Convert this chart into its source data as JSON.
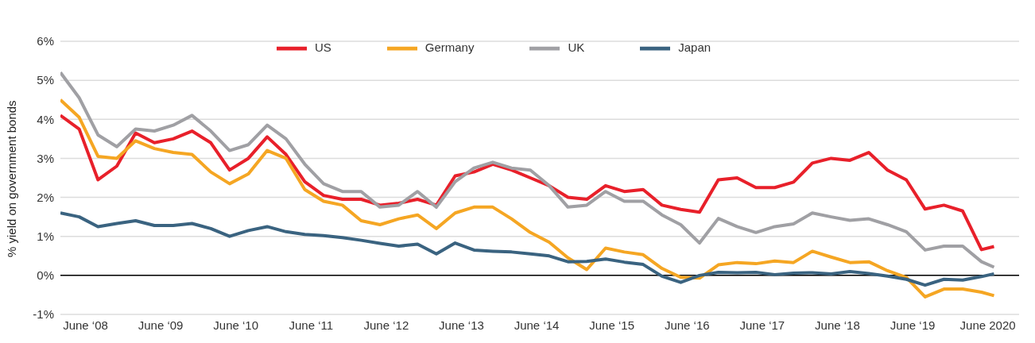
{
  "chart_data": {
    "type": "line",
    "ylabel": "% yield on government bonds",
    "x": [
      "2008-02",
      "2008-05",
      "2008-08",
      "2008-11",
      "2009-02",
      "2009-05",
      "2009-08",
      "2009-11",
      "2010-02",
      "2010-05",
      "2010-08",
      "2010-11",
      "2011-02",
      "2011-05",
      "2011-08",
      "2011-11",
      "2012-02",
      "2012-05",
      "2012-08",
      "2012-11",
      "2013-02",
      "2013-05",
      "2013-08",
      "2013-11",
      "2014-02",
      "2014-05",
      "2014-08",
      "2014-11",
      "2015-02",
      "2015-05",
      "2015-08",
      "2015-11",
      "2016-02",
      "2016-05",
      "2016-08",
      "2016-11",
      "2017-02",
      "2017-05",
      "2017-08",
      "2017-11",
      "2018-02",
      "2018-05",
      "2018-08",
      "2018-11",
      "2019-02",
      "2019-05",
      "2019-08",
      "2019-11",
      "2020-02",
      "2020-05",
      "2020-07"
    ],
    "series": [
      {
        "name": "US",
        "color": "#e8202a",
        "values": [
          4.1,
          3.75,
          2.45,
          2.8,
          3.65,
          3.4,
          3.5,
          3.7,
          3.4,
          2.7,
          3.0,
          3.55,
          3.1,
          2.4,
          2.05,
          1.95,
          1.95,
          1.8,
          1.85,
          1.95,
          1.8,
          2.55,
          2.65,
          2.85,
          2.7,
          2.5,
          2.3,
          2.0,
          1.95,
          2.3,
          2.15,
          2.2,
          1.8,
          1.69,
          1.62,
          2.45,
          2.5,
          2.25,
          2.25,
          2.39,
          2.88,
          3.0,
          2.95,
          3.15,
          2.7,
          2.45,
          1.7,
          1.8,
          1.65,
          0.66,
          0.74
        ]
      },
      {
        "name": "Germany",
        "color": "#f5a623",
        "values": [
          4.5,
          4.05,
          3.05,
          3.0,
          3.45,
          3.25,
          3.15,
          3.1,
          2.65,
          2.35,
          2.6,
          3.2,
          3.0,
          2.2,
          1.9,
          1.8,
          1.4,
          1.3,
          1.45,
          1.55,
          1.2,
          1.6,
          1.75,
          1.75,
          1.45,
          1.1,
          0.85,
          0.45,
          0.15,
          0.7,
          0.6,
          0.53,
          0.18,
          -0.05,
          -0.07,
          0.27,
          0.33,
          0.3,
          0.37,
          0.33,
          0.62,
          0.47,
          0.33,
          0.35,
          0.12,
          -0.05,
          -0.55,
          -0.35,
          -0.35,
          -0.43,
          -0.52
        ]
      },
      {
        "name": "UK",
        "color": "#a0a0a4",
        "values": [
          5.2,
          4.55,
          3.6,
          3.3,
          3.75,
          3.7,
          3.85,
          4.1,
          3.7,
          3.2,
          3.35,
          3.85,
          3.5,
          2.85,
          2.35,
          2.15,
          2.15,
          1.75,
          1.8,
          2.15,
          1.75,
          2.4,
          2.75,
          2.9,
          2.75,
          2.7,
          2.3,
          1.75,
          1.8,
          2.15,
          1.9,
          1.9,
          1.55,
          1.3,
          0.83,
          1.46,
          1.25,
          1.1,
          1.25,
          1.32,
          1.6,
          1.5,
          1.41,
          1.45,
          1.3,
          1.12,
          0.65,
          0.75,
          0.75,
          0.35,
          0.21
        ]
      },
      {
        "name": "Japan",
        "color": "#3a6380",
        "values": [
          1.6,
          1.5,
          1.25,
          1.33,
          1.4,
          1.28,
          1.28,
          1.33,
          1.2,
          1.0,
          1.15,
          1.25,
          1.12,
          1.05,
          1.02,
          0.97,
          0.9,
          0.82,
          0.75,
          0.8,
          0.55,
          0.83,
          0.65,
          0.62,
          0.6,
          0.55,
          0.5,
          0.35,
          0.36,
          0.42,
          0.34,
          0.28,
          -0.02,
          -0.18,
          0.0,
          0.08,
          0.07,
          0.08,
          0.02,
          0.06,
          0.07,
          0.04,
          0.1,
          0.05,
          -0.02,
          -0.1,
          -0.25,
          -0.1,
          -0.12,
          -0.03,
          0.04
        ]
      }
    ],
    "xlim": [
      "2008-02",
      "2020-11"
    ],
    "xticks": [
      {
        "value": "2008-06",
        "label": "June ‘08"
      },
      {
        "value": "2009-06",
        "label": "June ‘09"
      },
      {
        "value": "2010-06",
        "label": "June ‘10"
      },
      {
        "value": "2011-06",
        "label": "June ‘11"
      },
      {
        "value": "2012-06",
        "label": "June ‘12"
      },
      {
        "value": "2013-06",
        "label": "June ‘13"
      },
      {
        "value": "2014-06",
        "label": "June ‘14"
      },
      {
        "value": "2015-06",
        "label": "June ‘15"
      },
      {
        "value": "2016-06",
        "label": "June ‘16"
      },
      {
        "value": "2017-06",
        "label": "June ‘17"
      },
      {
        "value": "2018-06",
        "label": "June ‘18"
      },
      {
        "value": "2019-06",
        "label": "June ‘19"
      },
      {
        "value": "2020-06",
        "label": "June 2020"
      }
    ],
    "ylim": [
      -1,
      6
    ],
    "yticks": [
      {
        "value": -1,
        "label": "-1%"
      },
      {
        "value": 0,
        "label": "0%"
      },
      {
        "value": 1,
        "label": "1%"
      },
      {
        "value": 2,
        "label": "2%"
      },
      {
        "value": 3,
        "label": "3%"
      },
      {
        "value": 4,
        "label": "4%"
      },
      {
        "value": 5,
        "label": "5%"
      },
      {
        "value": 6,
        "label": "6%"
      }
    ],
    "ref_lines": [
      {
        "axis": "y",
        "value": 0,
        "color": "#000000"
      }
    ],
    "grid": "y",
    "legend": "top",
    "marker": "none",
    "line_style": "solid"
  }
}
